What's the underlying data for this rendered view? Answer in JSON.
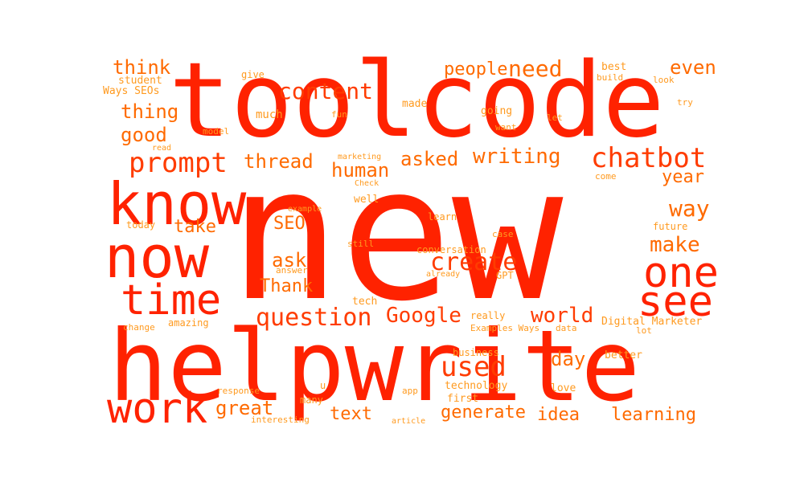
{
  "words": [
    "new",
    "toolcode",
    "helpwrite",
    "know",
    "now",
    "time",
    "one",
    "see",
    "work",
    "prompt",
    "chatbot",
    "content",
    "create",
    "question",
    "Google",
    "used",
    "world",
    "think",
    "thing",
    "good",
    "need",
    "people",
    "even",
    "thread",
    "human",
    "asked",
    "writing",
    "year",
    "way",
    "make",
    "take",
    "SEO",
    "ask",
    "Thank",
    "day",
    "great",
    "text",
    "generate",
    "idea",
    "learning",
    "student",
    "Ways SEOs",
    "give",
    "much",
    "made",
    "fun",
    "going",
    "want",
    "let",
    "best",
    "build",
    "look",
    "try",
    "model",
    "read",
    "marketing",
    "Check",
    "come",
    "example",
    "today",
    "well",
    "learn",
    "future",
    "still",
    "case",
    "conversation",
    "answer",
    "already",
    "GPT",
    "tech",
    "really",
    "Digital Marketer",
    "change",
    "amazing",
    "Examples Ways",
    "data",
    "lot",
    "business",
    "better",
    "response",
    "u",
    "app",
    "technology",
    "first",
    "love",
    "many",
    "interesting",
    "article"
  ],
  "colors": {
    "primary": "#ff2200",
    "secondary": "#ff3c00",
    "tertiary": "#ff6a00",
    "light": "#ff9a1f",
    "background": "#ffffff"
  }
}
